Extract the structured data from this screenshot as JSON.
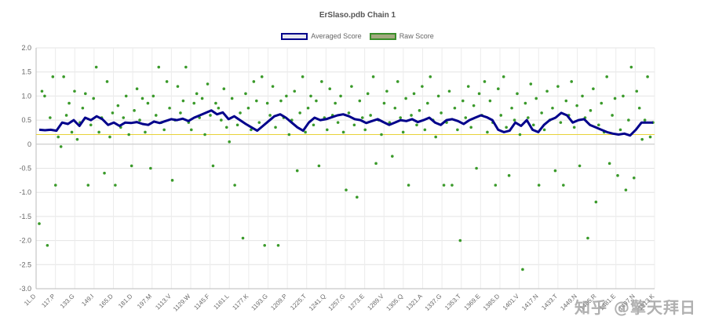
{
  "chart_data": {
    "type": "line",
    "title": "ErSlaso.pdb Chain 1",
    "ylim": [
      -3.0,
      2.0
    ],
    "yticks": [
      "2.0",
      "1.5",
      "1.0",
      "0.5",
      "0",
      "-0.5",
      "-1.0",
      "-1.5",
      "-2.0",
      "-2.5",
      "-3.0"
    ],
    "x_tick_labels": [
      "1L.D",
      "117.P",
      "133.G",
      "149.I",
      "165.D",
      "181.D",
      "197.M",
      "1113.V",
      "1129.W",
      "1145.F",
      "1161.L",
      "1177.K",
      "1193.G",
      "1209.P",
      "1225.T",
      "1241.Q",
      "1257.G",
      "1273.E",
      "1289.V",
      "1305.Q",
      "1321.A",
      "1337.G",
      "1353.T",
      "1369.E",
      "1385.D",
      "1401.V",
      "1417.N",
      "1433.T",
      "1449.N",
      "1465.R",
      "1481.E",
      "1497.N",
      "1513.K"
    ],
    "threshold": 0.2,
    "grid": true,
    "legend": "top-center",
    "series": [
      {
        "name": "Averaged Score",
        "color": "#00008b",
        "values": [
          0.3,
          0.29,
          0.3,
          0.28,
          0.45,
          0.42,
          0.5,
          0.38,
          0.55,
          0.5,
          0.58,
          0.52,
          0.4,
          0.45,
          0.38,
          0.45,
          0.44,
          0.46,
          0.42,
          0.4,
          0.47,
          0.44,
          0.48,
          0.52,
          0.5,
          0.53,
          0.48,
          0.55,
          0.6,
          0.65,
          0.7,
          0.62,
          0.66,
          0.52,
          0.58,
          0.5,
          0.42,
          0.35,
          0.28,
          0.38,
          0.48,
          0.58,
          0.62,
          0.55,
          0.45,
          0.35,
          0.28,
          0.45,
          0.55,
          0.5,
          0.52,
          0.56,
          0.6,
          0.62,
          0.58,
          0.52,
          0.5,
          0.44,
          0.48,
          0.52,
          0.46,
          0.4,
          0.45,
          0.5,
          0.48,
          0.52,
          0.46,
          0.5,
          0.55,
          0.45,
          0.4,
          0.5,
          0.52,
          0.48,
          0.42,
          0.5,
          0.55,
          0.6,
          0.56,
          0.5,
          0.3,
          0.25,
          0.28,
          0.45,
          0.38,
          0.5,
          0.3,
          0.25,
          0.4,
          0.5,
          0.55,
          0.65,
          0.6,
          0.45,
          0.5,
          0.52,
          0.4,
          0.35,
          0.3,
          0.25,
          0.22,
          0.2,
          0.22,
          0.18,
          0.3,
          0.45,
          0.45,
          0.45
        ]
      },
      {
        "name": "Raw Score",
        "color": "#3a9a2a",
        "values": [
          -1.65,
          1.1,
          1.0,
          -2.1,
          0.55,
          1.4,
          -0.85,
          0.15,
          -0.05,
          1.4,
          0.6,
          0.85,
          0.25,
          1.1,
          0.1,
          0.45,
          0.75,
          1.05,
          -0.85,
          0.4,
          0.95,
          1.6,
          0.25,
          0.55,
          -0.6,
          1.3,
          0.15,
          0.65,
          -0.85,
          0.8,
          0.35,
          0.55,
          1.0,
          0.2,
          -0.45,
          0.7,
          1.15,
          0.5,
          0.95,
          0.25,
          0.85,
          -0.5,
          1.0,
          0.6,
          1.6,
          0.45,
          0.3,
          1.3,
          0.75,
          -0.75,
          0.5,
          1.2,
          0.65,
          0.9,
          1.6,
          0.45,
          0.3,
          0.85,
          1.05,
          0.55,
          0.95,
          0.2,
          1.25,
          0.6,
          -0.45,
          0.85,
          0.75,
          0.5,
          1.15,
          0.35,
          0.05,
          0.95,
          -0.85,
          0.4,
          0.65,
          -1.95,
          1.05,
          0.75,
          0.3,
          1.3,
          0.9,
          0.45,
          1.4,
          -2.1,
          0.85,
          0.6,
          1.2,
          0.35,
          -2.1,
          0.9,
          0.55,
          1.0,
          0.2,
          0.5,
          1.1,
          -0.55,
          0.65,
          1.4,
          0.25,
          0.75,
          1.0,
          0.4,
          0.9,
          -0.45,
          1.3,
          0.55,
          0.3,
          1.15,
          0.6,
          0.85,
          0.45,
          1.0,
          0.25,
          -0.95,
          0.65,
          1.2,
          0.4,
          -1.1,
          0.9,
          0.55,
          0.3,
          1.05,
          0.6,
          1.4,
          -0.4,
          0.5,
          0.2,
          0.85,
          1.1,
          0.45,
          -0.25,
          0.75,
          1.3,
          0.55,
          0.25,
          0.95,
          -0.85,
          0.6,
          1.05,
          0.4,
          0.7,
          1.2,
          0.3,
          0.85,
          1.4,
          0.5,
          0.15,
          1.0,
          0.65,
          -0.85,
          0.45,
          1.1,
          -0.85,
          0.75,
          0.3,
          -2.0,
          0.9,
          0.55,
          1.2,
          0.35,
          0.8,
          -0.5,
          1.05,
          0.6,
          1.3,
          0.25,
          0.9,
          0.45,
          -0.85,
          1.15,
          0.6,
          1.4,
          0.35,
          -0.65,
          0.75,
          0.5,
          1.05,
          0.2,
          -2.6,
          0.85,
          0.55,
          1.25,
          0.4,
          0.95,
          -0.85,
          0.65,
          0.3,
          1.1,
          0.5,
          0.75,
          -0.55,
          1.2,
          0.45,
          -0.85,
          0.9,
          0.6,
          1.3,
          0.35,
          0.8,
          -0.45,
          1.0,
          0.55,
          -1.95,
          0.7,
          1.15,
          -1.2,
          0.4,
          0.85,
          0.25,
          1.4,
          -0.4,
          0.6,
          0.95,
          -0.65,
          0.3,
          1.0,
          -0.95,
          0.5,
          1.6,
          -0.7,
          1.1,
          0.75,
          0.1,
          0.5,
          1.4,
          0.15,
          0.45
        ]
      }
    ]
  },
  "watermark": "知乎 @擎天拜日"
}
